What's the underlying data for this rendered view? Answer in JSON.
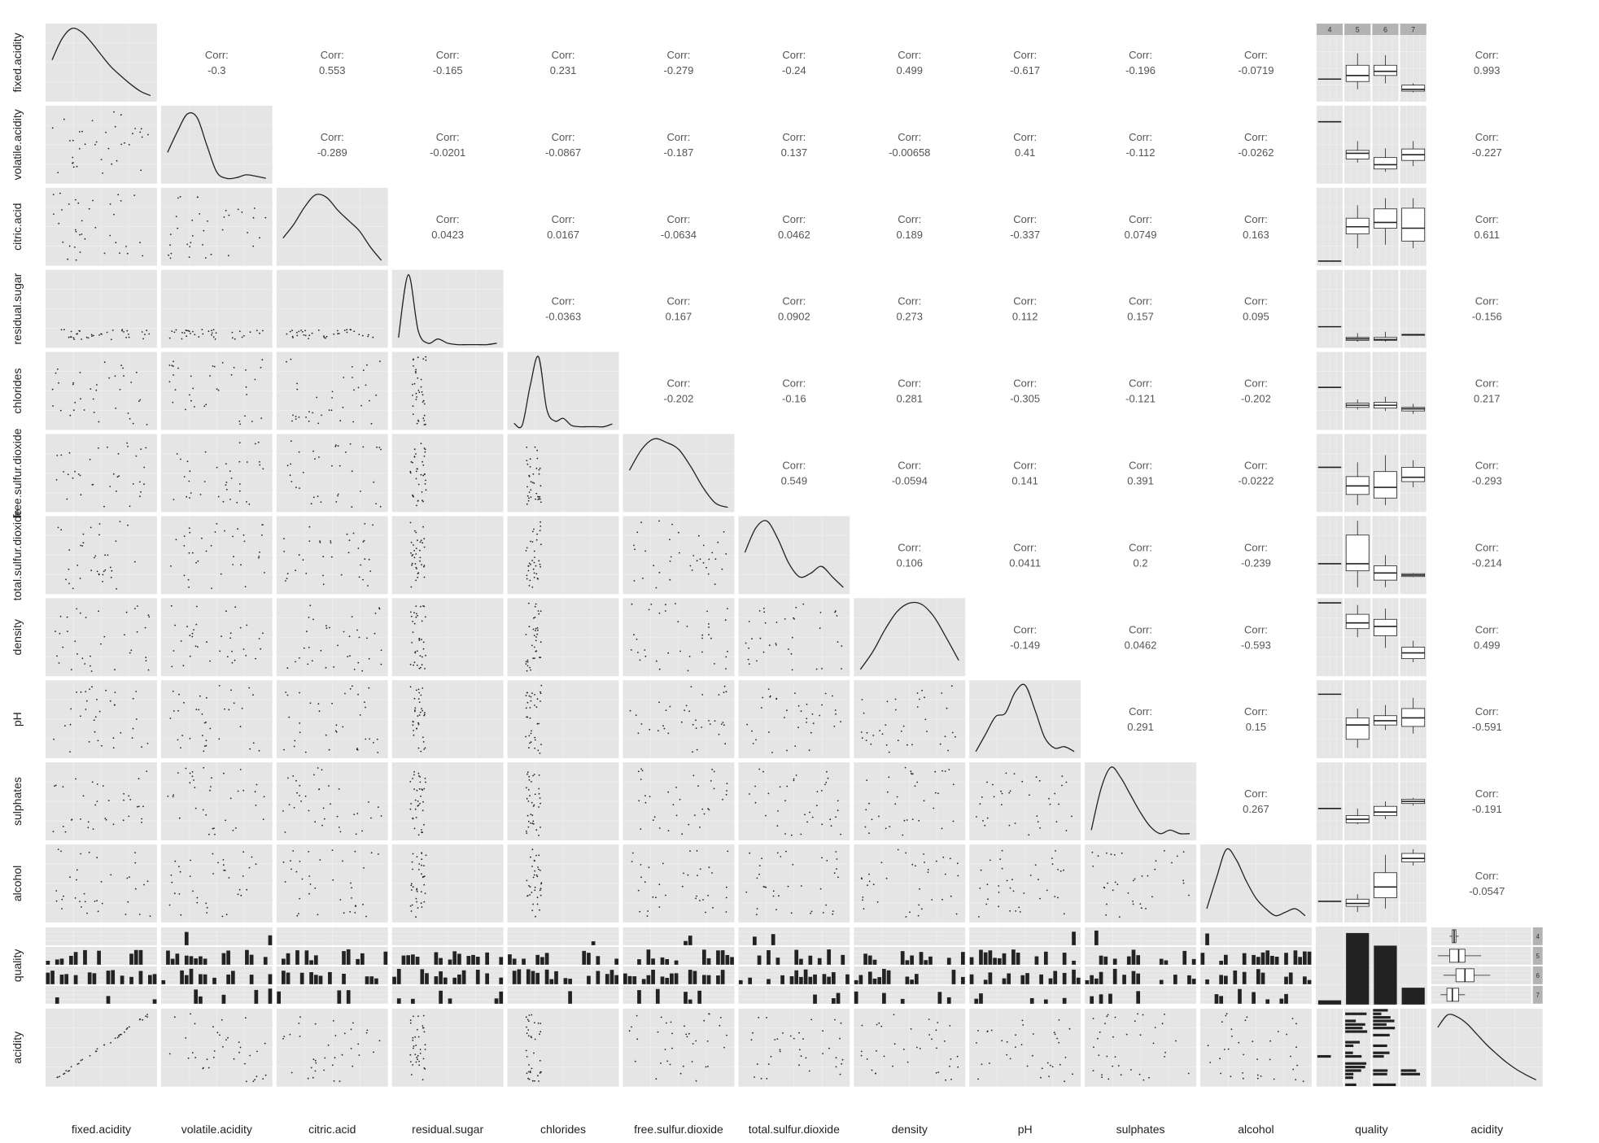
{
  "colors": {
    "panel_bg": "#e5e5e5",
    "grid_major": "#f2f2f2",
    "ink": "#222222",
    "corr_text": "#555555",
    "strip_bg": "#b3b3b3",
    "strip_text": "#333333",
    "box_fill": "#ffffff"
  },
  "chart_data": {
    "type": "scatter",
    "subtype": "pairs-plot (ggpairs)",
    "title": "",
    "variables": [
      "fixed.acidity",
      "volatile.acidity",
      "citric.acid",
      "residual.sugar",
      "chlorides",
      "free.sulfur.dioxide",
      "total.sulfur.dioxide",
      "density",
      "pH",
      "sulphates",
      "alcohol",
      "quality",
      "acidity"
    ],
    "corr_label": "Corr:",
    "correlations": [
      {
        "row": "fixed.acidity",
        "col": "volatile.acidity",
        "value": "-0.3"
      },
      {
        "row": "fixed.acidity",
        "col": "citric.acid",
        "value": "0.553"
      },
      {
        "row": "fixed.acidity",
        "col": "residual.sugar",
        "value": "-0.165"
      },
      {
        "row": "fixed.acidity",
        "col": "chlorides",
        "value": "0.231"
      },
      {
        "row": "fixed.acidity",
        "col": "free.sulfur.dioxide",
        "value": "-0.279"
      },
      {
        "row": "fixed.acidity",
        "col": "total.sulfur.dioxide",
        "value": "-0.24"
      },
      {
        "row": "fixed.acidity",
        "col": "density",
        "value": "0.499"
      },
      {
        "row": "fixed.acidity",
        "col": "pH",
        "value": "-0.617"
      },
      {
        "row": "fixed.acidity",
        "col": "sulphates",
        "value": "-0.196"
      },
      {
        "row": "fixed.acidity",
        "col": "alcohol",
        "value": "-0.0719"
      },
      {
        "row": "fixed.acidity",
        "col": "acidity",
        "value": "0.993"
      },
      {
        "row": "volatile.acidity",
        "col": "citric.acid",
        "value": "-0.289"
      },
      {
        "row": "volatile.acidity",
        "col": "residual.sugar",
        "value": "-0.0201"
      },
      {
        "row": "volatile.acidity",
        "col": "chlorides",
        "value": "-0.0867"
      },
      {
        "row": "volatile.acidity",
        "col": "free.sulfur.dioxide",
        "value": "-0.187"
      },
      {
        "row": "volatile.acidity",
        "col": "total.sulfur.dioxide",
        "value": "0.137"
      },
      {
        "row": "volatile.acidity",
        "col": "density",
        "value": "-0.00658"
      },
      {
        "row": "volatile.acidity",
        "col": "pH",
        "value": "0.41"
      },
      {
        "row": "volatile.acidity",
        "col": "sulphates",
        "value": "-0.112"
      },
      {
        "row": "volatile.acidity",
        "col": "alcohol",
        "value": "-0.0262"
      },
      {
        "row": "volatile.acidity",
        "col": "acidity",
        "value": "-0.227"
      },
      {
        "row": "citric.acid",
        "col": "residual.sugar",
        "value": "0.0423"
      },
      {
        "row": "citric.acid",
        "col": "chlorides",
        "value": "0.0167"
      },
      {
        "row": "citric.acid",
        "col": "free.sulfur.dioxide",
        "value": "-0.0634"
      },
      {
        "row": "citric.acid",
        "col": "total.sulfur.dioxide",
        "value": "0.0462"
      },
      {
        "row": "citric.acid",
        "col": "density",
        "value": "0.189"
      },
      {
        "row": "citric.acid",
        "col": "pH",
        "value": "-0.337"
      },
      {
        "row": "citric.acid",
        "col": "sulphates",
        "value": "0.0749"
      },
      {
        "row": "citric.acid",
        "col": "alcohol",
        "value": "0.163"
      },
      {
        "row": "citric.acid",
        "col": "acidity",
        "value": "0.611"
      },
      {
        "row": "residual.sugar",
        "col": "chlorides",
        "value": "-0.0363"
      },
      {
        "row": "residual.sugar",
        "col": "free.sulfur.dioxide",
        "value": "0.167"
      },
      {
        "row": "residual.sugar",
        "col": "total.sulfur.dioxide",
        "value": "0.0902"
      },
      {
        "row": "residual.sugar",
        "col": "density",
        "value": "0.273"
      },
      {
        "row": "residual.sugar",
        "col": "pH",
        "value": "0.112"
      },
      {
        "row": "residual.sugar",
        "col": "sulphates",
        "value": "0.157"
      },
      {
        "row": "residual.sugar",
        "col": "alcohol",
        "value": "0.095"
      },
      {
        "row": "residual.sugar",
        "col": "acidity",
        "value": "-0.156"
      },
      {
        "row": "chlorides",
        "col": "free.sulfur.dioxide",
        "value": "-0.202"
      },
      {
        "row": "chlorides",
        "col": "total.sulfur.dioxide",
        "value": "-0.16"
      },
      {
        "row": "chlorides",
        "col": "density",
        "value": "0.281"
      },
      {
        "row": "chlorides",
        "col": "pH",
        "value": "-0.305"
      },
      {
        "row": "chlorides",
        "col": "sulphates",
        "value": "-0.121"
      },
      {
        "row": "chlorides",
        "col": "alcohol",
        "value": "-0.202"
      },
      {
        "row": "chlorides",
        "col": "acidity",
        "value": "0.217"
      },
      {
        "row": "free.sulfur.dioxide",
        "col": "total.sulfur.dioxide",
        "value": "0.549"
      },
      {
        "row": "free.sulfur.dioxide",
        "col": "density",
        "value": "-0.0594"
      },
      {
        "row": "free.sulfur.dioxide",
        "col": "pH",
        "value": "0.141"
      },
      {
        "row": "free.sulfur.dioxide",
        "col": "sulphates",
        "value": "0.391"
      },
      {
        "row": "free.sulfur.dioxide",
        "col": "alcohol",
        "value": "-0.0222"
      },
      {
        "row": "free.sulfur.dioxide",
        "col": "acidity",
        "value": "-0.293"
      },
      {
        "row": "total.sulfur.dioxide",
        "col": "density",
        "value": "0.106"
      },
      {
        "row": "total.sulfur.dioxide",
        "col": "pH",
        "value": "0.0411"
      },
      {
        "row": "total.sulfur.dioxide",
        "col": "sulphates",
        "value": "0.2"
      },
      {
        "row": "total.sulfur.dioxide",
        "col": "alcohol",
        "value": "-0.239"
      },
      {
        "row": "total.sulfur.dioxide",
        "col": "acidity",
        "value": "-0.214"
      },
      {
        "row": "density",
        "col": "pH",
        "value": "-0.149"
      },
      {
        "row": "density",
        "col": "sulphates",
        "value": "0.0462"
      },
      {
        "row": "density",
        "col": "alcohol",
        "value": "-0.593"
      },
      {
        "row": "density",
        "col": "acidity",
        "value": "0.499"
      },
      {
        "row": "pH",
        "col": "sulphates",
        "value": "0.291"
      },
      {
        "row": "pH",
        "col": "alcohol",
        "value": "0.15"
      },
      {
        "row": "pH",
        "col": "acidity",
        "value": "-0.591"
      },
      {
        "row": "sulphates",
        "col": "alcohol",
        "value": "0.267"
      },
      {
        "row": "sulphates",
        "col": "acidity",
        "value": "-0.191"
      },
      {
        "row": "alcohol",
        "col": "acidity",
        "value": "-0.0547"
      }
    ],
    "quality_levels": [
      "4",
      "5",
      "6",
      "7"
    ],
    "quality_counts": [
      1,
      17,
      14,
      4
    ],
    "density_shapes": {
      "fixed.acidity": [
        0.55,
        0.85,
        1.0,
        0.95,
        0.8,
        0.62,
        0.45,
        0.32,
        0.2,
        0.1,
        0.04
      ],
      "volatile.acidity": [
        0.4,
        0.7,
        0.95,
        0.9,
        0.5,
        0.12,
        0.03,
        0.04,
        0.08,
        0.06,
        0.03
      ],
      "citric.acid": [
        0.35,
        0.55,
        0.8,
        0.97,
        0.93,
        0.75,
        0.6,
        0.45,
        0.22,
        0.03
      ],
      "residual.sugar": [
        0.1,
        1.0,
        0.2,
        0.02,
        0.08,
        0.02,
        0.0,
        0.0,
        0.0,
        0.0,
        0.02
      ],
      "chlorides": [
        0.05,
        0.02,
        0.6,
        1.0,
        0.25,
        0.08,
        0.12,
        0.02,
        0.0,
        0.0,
        0.0,
        0.0,
        0.04
      ],
      "free.sulfur.dioxide": [
        0.55,
        0.85,
        1.0,
        0.95,
        0.85,
        0.6,
        0.3,
        0.08,
        0.02
      ],
      "total.sulfur.dioxide": [
        0.55,
        0.9,
        1.0,
        0.75,
        0.4,
        0.2,
        0.25,
        0.35,
        0.2,
        0.05
      ],
      "density": [
        0.05,
        0.3,
        0.62,
        0.88,
        1.0,
        0.98,
        0.8,
        0.5,
        0.18
      ],
      "pH": [
        0.05,
        0.3,
        0.55,
        0.6,
        0.9,
        1.0,
        0.65,
        0.25,
        0.1,
        0.12,
        0.05
      ],
      "sulphates": [
        0.1,
        0.7,
        1.0,
        0.85,
        0.6,
        0.35,
        0.15,
        0.05,
        0.1,
        0.05,
        0.05
      ],
      "alcohol": [
        0.15,
        0.6,
        1.0,
        0.85,
        0.55,
        0.3,
        0.15,
        0.05,
        0.1,
        0.15,
        0.05
      ],
      "acidity": [
        0.8,
        0.98,
        0.95,
        0.85,
        0.7,
        0.55,
        0.42,
        0.3,
        0.2,
        0.12,
        0.05
      ]
    },
    "quality_boxplots": {
      "fixed.acidity": [
        [
          0.32,
          0.32,
          0.32,
          0.32,
          0.32
        ],
        [
          0.15,
          0.28,
          0.38,
          0.55,
          0.75
        ],
        [
          0.25,
          0.38,
          0.45,
          0.55,
          0.72
        ],
        [
          0.1,
          0.12,
          0.15,
          0.22,
          0.25
        ]
      ],
      "volatile.acidity": [
        [
          0.82,
          0.82,
          0.82,
          0.82,
          0.82
        ],
        [
          0.25,
          0.3,
          0.38,
          0.42,
          0.55
        ],
        [
          0.12,
          0.16,
          0.22,
          0.32,
          0.45
        ],
        [
          0.2,
          0.28,
          0.36,
          0.44,
          0.55
        ]
      ],
      "citric.acid": [
        [
          0.02,
          0.02,
          0.02,
          0.02,
          0.02
        ],
        [
          0.2,
          0.4,
          0.5,
          0.62,
          0.8
        ],
        [
          0.25,
          0.48,
          0.56,
          0.75,
          0.9
        ],
        [
          0.2,
          0.3,
          0.48,
          0.76,
          0.9
        ]
      ],
      "residual.sugar": [
        [
          0.25,
          0.25,
          0.25,
          0.25,
          0.25
        ],
        [
          0.04,
          0.06,
          0.08,
          0.1,
          0.16
        ],
        [
          0.04,
          0.06,
          0.07,
          0.1,
          0.18
        ],
        [
          0.13,
          0.13,
          0.14,
          0.14,
          0.15
        ]
      ],
      "chlorides": [
        [
          0.55,
          0.55,
          0.55,
          0.55,
          0.55
        ],
        [
          0.24,
          0.27,
          0.3,
          0.33,
          0.38
        ],
        [
          0.22,
          0.26,
          0.3,
          0.34,
          0.42
        ],
        [
          0.18,
          0.22,
          0.25,
          0.27,
          0.32
        ]
      ],
      "free.sulfur.dioxide": [
        [
          0.58,
          0.58,
          0.58,
          0.58,
          0.58
        ],
        [
          0.05,
          0.2,
          0.32,
          0.45,
          0.65
        ],
        [
          0.05,
          0.15,
          0.3,
          0.52,
          0.75
        ],
        [
          0.3,
          0.38,
          0.44,
          0.58,
          0.68
        ]
      ],
      "total.sulfur.dioxide": [
        [
          0.38,
          0.38,
          0.38,
          0.38,
          0.38
        ],
        [
          0.05,
          0.28,
          0.38,
          0.78,
          0.98
        ],
        [
          0.05,
          0.15,
          0.25,
          0.35,
          0.5
        ],
        [
          0.19,
          0.2,
          0.22,
          0.24,
          0.25
        ]
      ],
      "density": [
        [
          0.98,
          0.98,
          0.98,
          0.98,
          0.98
        ],
        [
          0.5,
          0.62,
          0.7,
          0.82,
          0.95
        ],
        [
          0.35,
          0.52,
          0.65,
          0.75,
          0.9
        ],
        [
          0.15,
          0.2,
          0.28,
          0.36,
          0.45
        ]
      ],
      "pH": [
        [
          0.85,
          0.85,
          0.85,
          0.85,
          0.85
        ],
        [
          0.1,
          0.22,
          0.42,
          0.52,
          0.65
        ],
        [
          0.35,
          0.42,
          0.48,
          0.55,
          0.7
        ],
        [
          0.3,
          0.4,
          0.52,
          0.65,
          0.8
        ]
      ],
      "sulphates": [
        [
          0.4,
          0.4,
          0.4,
          0.4,
          0.4
        ],
        [
          0.18,
          0.2,
          0.25,
          0.3,
          0.4
        ],
        [
          0.25,
          0.3,
          0.35,
          0.43,
          0.5
        ],
        [
          0.44,
          0.47,
          0.5,
          0.53,
          0.55
        ]
      ],
      "alcohol": [
        [
          0.25,
          0.25,
          0.25,
          0.25,
          0.25
        ],
        [
          0.1,
          0.18,
          0.22,
          0.28,
          0.35
        ],
        [
          0.15,
          0.3,
          0.45,
          0.65,
          0.9
        ],
        [
          0.75,
          0.8,
          0.85,
          0.92,
          0.98
        ]
      ]
    },
    "acidity_by_quality_boxplots": [
      [
        0.15,
        0.18,
        0.2,
        0.22,
        0.25
      ],
      [
        0.02,
        0.15,
        0.25,
        0.32,
        0.5
      ],
      [
        0.08,
        0.22,
        0.32,
        0.42,
        0.6
      ],
      [
        0.05,
        0.12,
        0.18,
        0.25,
        0.32
      ]
    ]
  }
}
